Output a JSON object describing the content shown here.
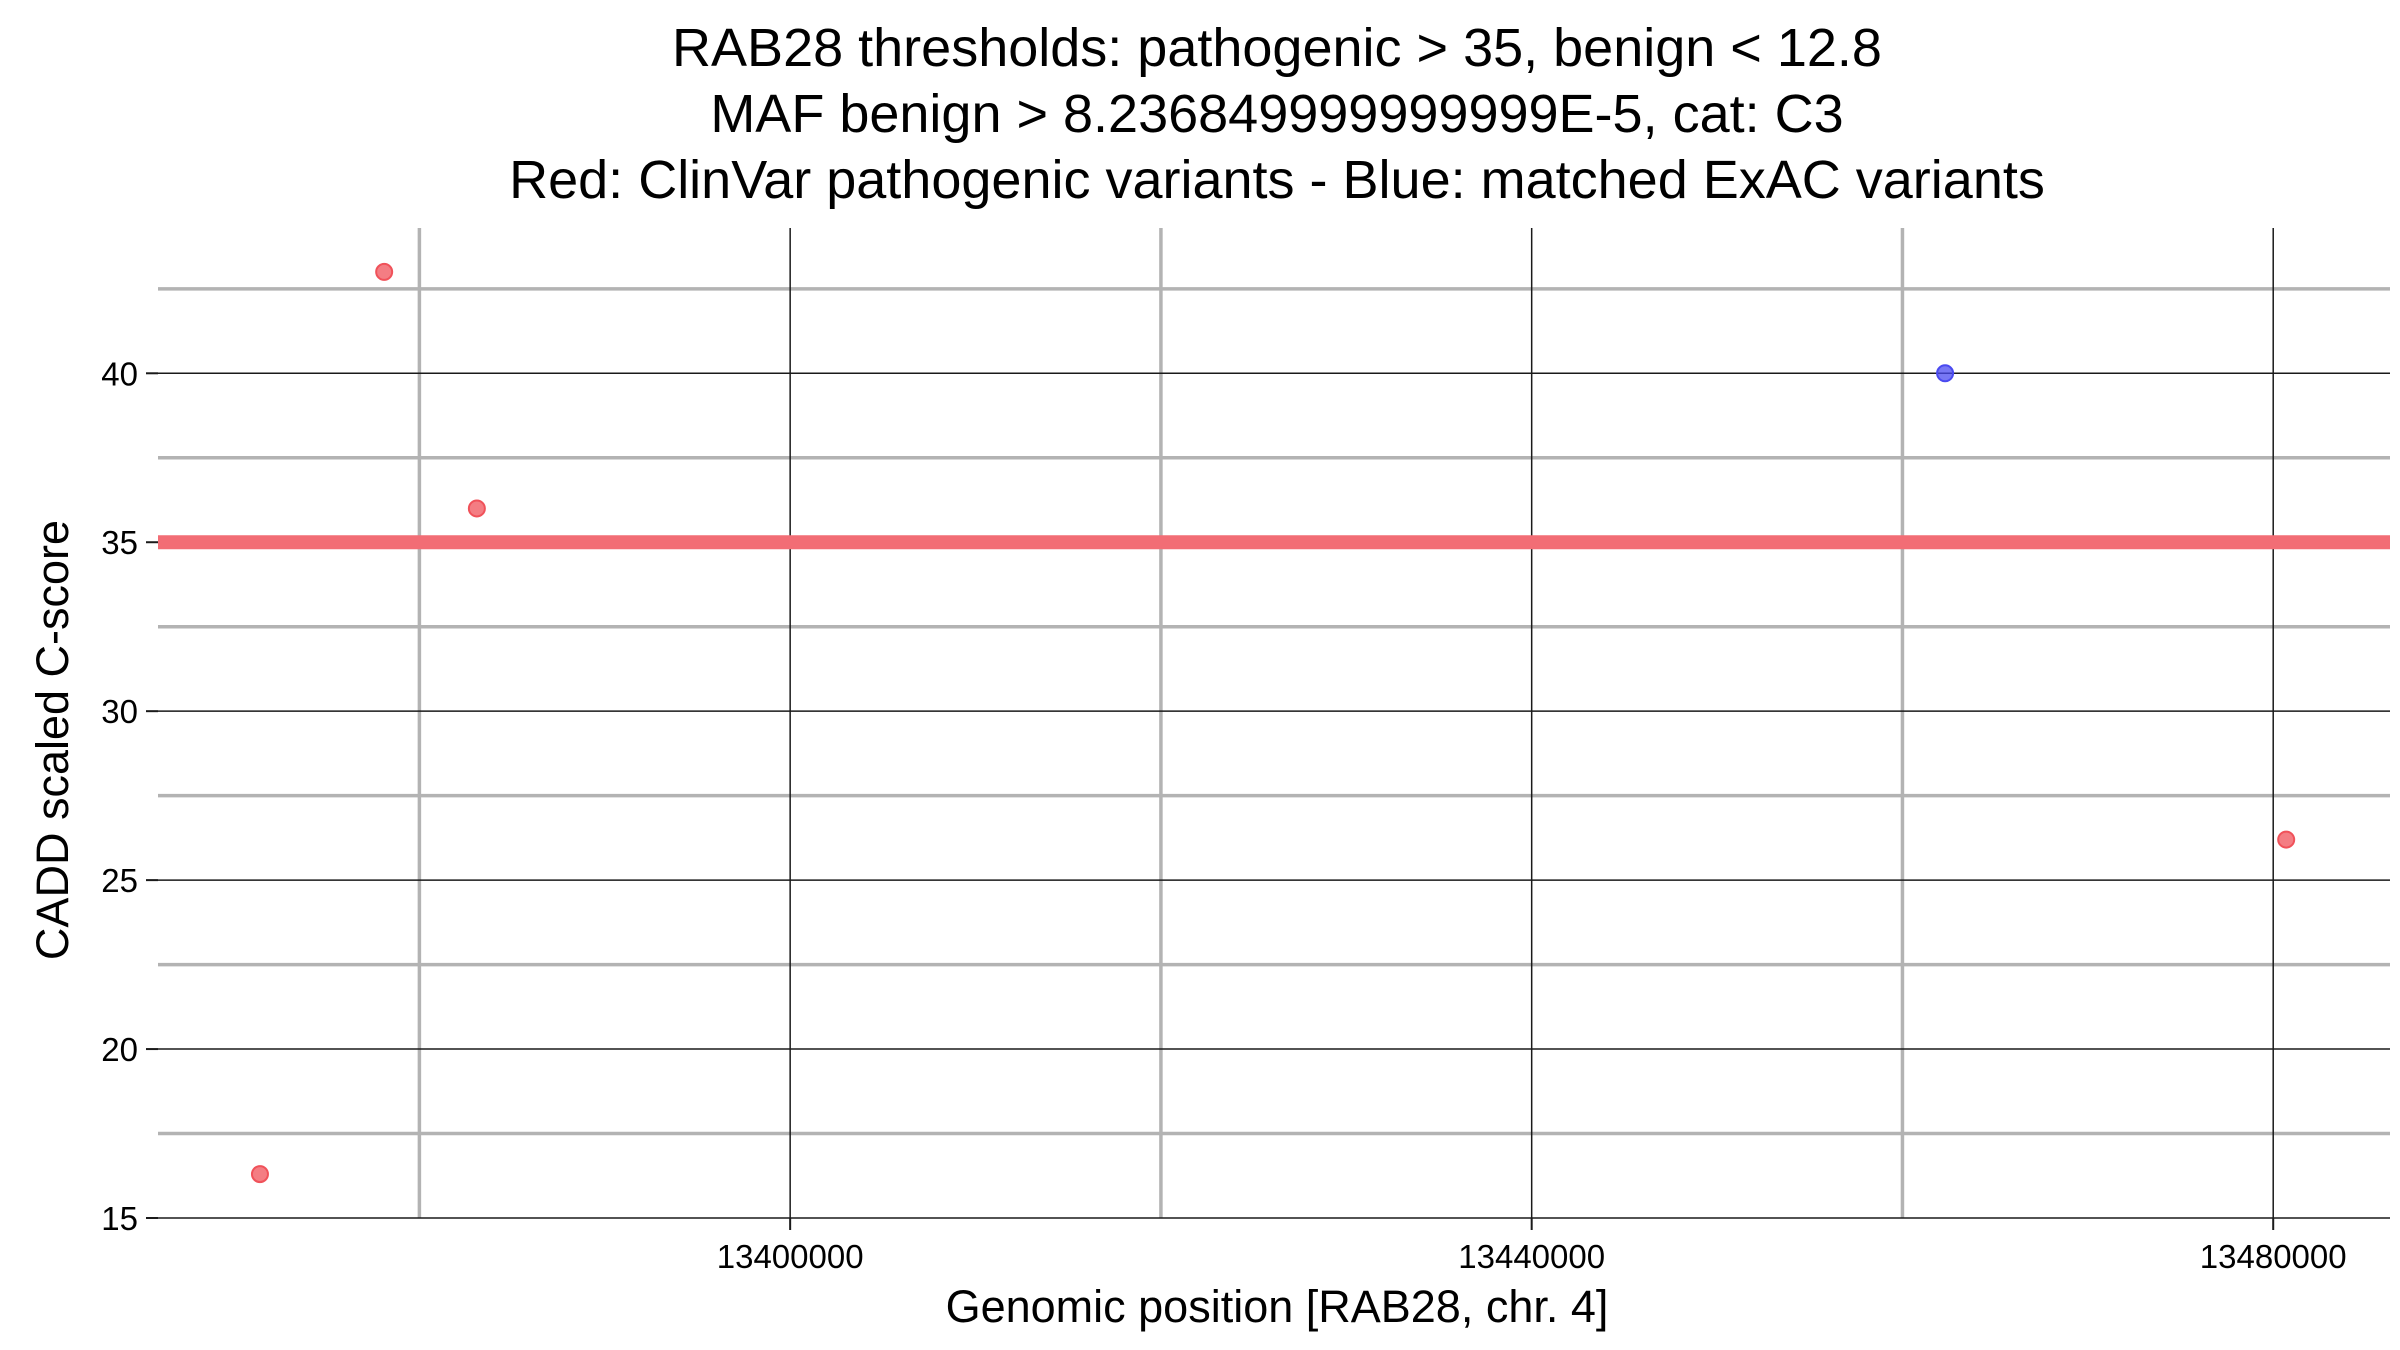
{
  "chart_data": {
    "type": "scatter",
    "title_lines": [
      "RAB28 thresholds: pathogenic > 35, benign < 12.8",
      "MAF benign > 8.236849999999999E-5, cat: C3",
      "Red: ClinVar pathogenic variants - Blue: matched ExAC variants"
    ],
    "xlabel": "Genomic position [RAB28, chr. 4]",
    "ylabel": "CADD scaled C-score",
    "xlim": [
      13365900,
      13486300
    ],
    "ylim": [
      15,
      44.3
    ],
    "x_major_ticks": [
      13400000,
      13440000,
      13480000
    ],
    "x_major_tick_labels": [
      "13400000",
      "13440000",
      "13480000"
    ],
    "x_minor_gridlines": [
      13380000,
      13420000,
      13460000
    ],
    "y_major_ticks": [
      15,
      20,
      25,
      30,
      35,
      40
    ],
    "y_major_tick_labels": [
      "15",
      "20",
      "25",
      "30",
      "35",
      "40"
    ],
    "y_minor_gridlines": [
      17.5,
      22.5,
      27.5,
      32.5,
      37.5,
      42.5
    ],
    "grid": true,
    "threshold_line": {
      "y": 35,
      "color": "#f26d75"
    },
    "series": [
      {
        "color": "#f0525a",
        "points": [
          {
            "x": 13371400,
            "y": 16.3
          },
          {
            "x": 13378100,
            "y": 43.0
          },
          {
            "x": 13383100,
            "y": 36.0
          },
          {
            "x": 13480700,
            "y": 26.2
          }
        ]
      },
      {
        "color": "#4a4af0",
        "points": [
          {
            "x": 13462300,
            "y": 40.0
          }
        ]
      }
    ]
  }
}
